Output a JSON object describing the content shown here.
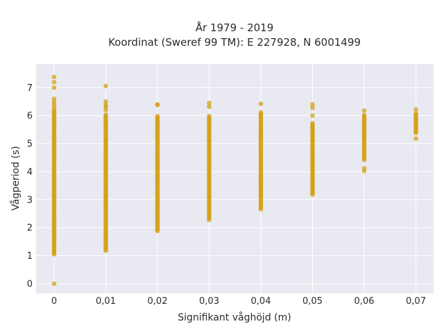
{
  "chart_data": {
    "type": "scatter",
    "title_line1": "År 1979 - 2019",
    "title_line2": "Koordinat (Sweref 99 TM): E 227928, N 6001499",
    "xlabel": "Signifikant våghöjd (m)",
    "ylabel": "Vågperiod (s)",
    "x_ticks": [
      "0",
      "0,01",
      "0,02",
      "0,03",
      "0,04",
      "0,05",
      "0,06",
      "0,07"
    ],
    "y_ticks": [
      "0",
      "1",
      "2",
      "3",
      "4",
      "5",
      "6",
      "7"
    ],
    "ylim": [
      -0.35,
      7.85
    ],
    "grid": true,
    "marker_color": "#D4A017",
    "plot_bg": "#E9E9F2",
    "columns": [
      {
        "x": 0.0,
        "range": [
          1.05,
          6.2
        ],
        "extra": [
          0,
          6.3,
          6.4,
          6.5,
          6.6,
          7.0,
          7.2,
          7.38
        ]
      },
      {
        "x": 0.01,
        "range": [
          1.18,
          6.05
        ],
        "extra": [
          6.2,
          6.32,
          6.38,
          6.5,
          7.06
        ]
      },
      {
        "x": 0.02,
        "range": [
          1.88,
          6.02
        ],
        "extra": [
          6.38,
          6.4
        ]
      },
      {
        "x": 0.03,
        "range": [
          2.28,
          6.02
        ],
        "extra": [
          6.32,
          6.45
        ]
      },
      {
        "x": 0.04,
        "range": [
          2.66,
          6.12
        ],
        "extra": [
          6.42
        ]
      },
      {
        "x": 0.05,
        "range": [
          3.18,
          5.75
        ],
        "extra": [
          6.0,
          6.28,
          6.4
        ]
      },
      {
        "x": 0.06,
        "range": [
          4.42,
          6.02
        ],
        "extra": [
          4.02,
          4.12,
          6.18
        ]
      },
      {
        "x": 0.07,
        "range": [
          5.38,
          6.1
        ],
        "extra": [
          5.18,
          6.22
        ]
      }
    ]
  }
}
